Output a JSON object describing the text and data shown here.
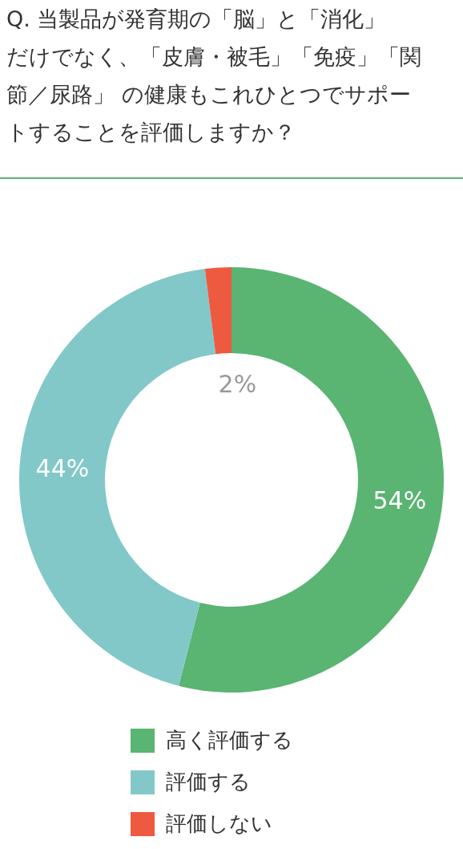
{
  "chart_data": {
    "type": "donut",
    "title": "Q. 当製品が発育期の「脳」と「消化」だけでなく、「皮膚・被毛」「免疫」「関節／尿路」 の健康もこれひとつでサポートすることを評価しますか？",
    "categories": [
      "高く評価する",
      "評価する",
      "評価しない"
    ],
    "values": [
      54,
      44,
      2
    ],
    "colors": [
      "#5ab472",
      "#82c8c8",
      "#ee5a40"
    ],
    "value_labels": [
      "54%",
      "44%",
      "2%"
    ],
    "legend": "bottom"
  }
}
